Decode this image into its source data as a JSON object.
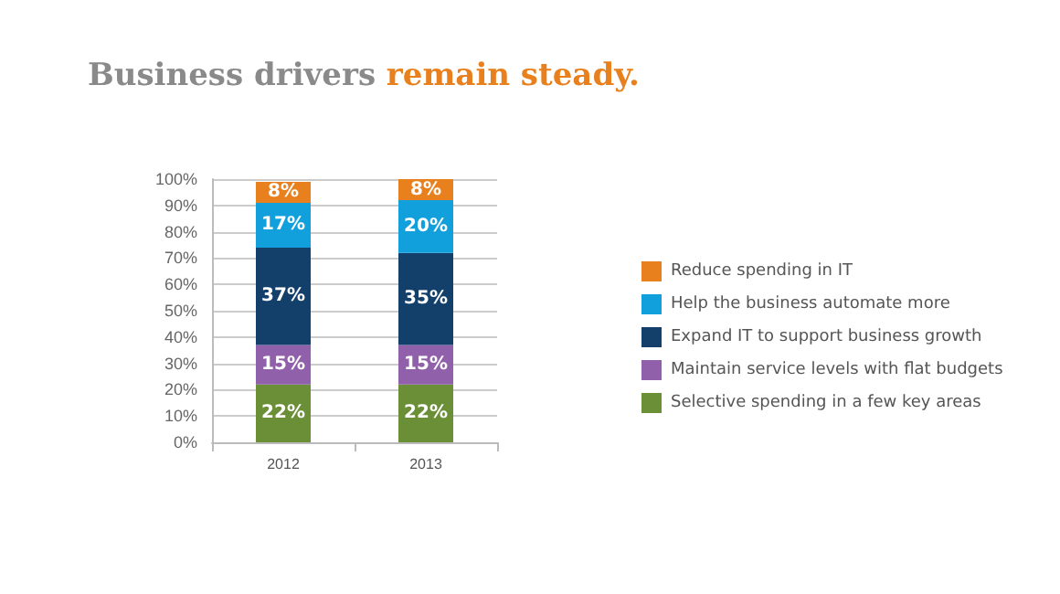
{
  "chart_data": {
    "type": "bar",
    "title": "Business drivers remain steady.",
    "categories": [
      "2012",
      "2013"
    ],
    "stacked": true,
    "series": [
      {
        "name": "Selective spending in a few key areas",
        "color": "#6b8f36",
        "values": [
          22,
          22
        ],
        "value_labels": [
          "22%",
          "22%"
        ]
      },
      {
        "name": "Maintain service levels with flat budgets",
        "color": "#9160aa",
        "values": [
          15,
          15
        ],
        "value_labels": [
          "15%",
          "15%"
        ]
      },
      {
        "name": "Expand IT to support business growth",
        "color": "#133f6b",
        "values": [
          37,
          35
        ],
        "value_labels": [
          "37%",
          "35%"
        ]
      },
      {
        "name": "Help the business automate more",
        "color": "#12a0dc",
        "values": [
          17,
          20
        ],
        "value_labels": [
          "17%",
          "20%"
        ]
      },
      {
        "name": "Reduce spending in IT",
        "color": "#e8801e",
        "values": [
          8,
          8
        ],
        "value_labels": [
          "8%",
          "8%"
        ]
      }
    ],
    "ylim": [
      0,
      100
    ],
    "yticks": [
      {
        "value": 0,
        "label": "0%"
      },
      {
        "value": 10,
        "label": "10%"
      },
      {
        "value": 20,
        "label": "20%"
      },
      {
        "value": 30,
        "label": "30%"
      },
      {
        "value": 40,
        "label": "40%"
      },
      {
        "value": 50,
        "label": "50%"
      },
      {
        "value": 60,
        "label": "60%"
      },
      {
        "value": 70,
        "label": "70%"
      },
      {
        "value": 80,
        "label": "80%"
      },
      {
        "value": 90,
        "label": "90%"
      },
      {
        "value": 100,
        "label": "100%"
      }
    ],
    "grid": "y",
    "legend": "right"
  }
}
